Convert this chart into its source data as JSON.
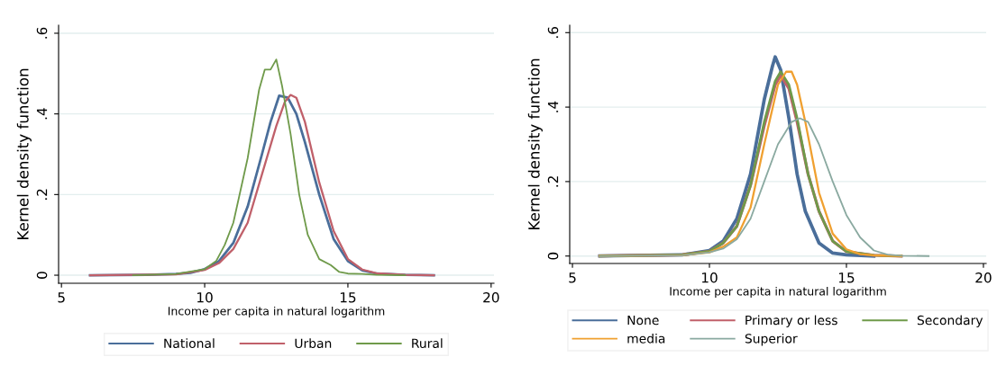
{
  "chart_data": [
    {
      "type": "line",
      "xlabel": "Income per capita in natural logarithm",
      "ylabel": "Kernel density function",
      "xlim": [
        4.9,
        20.1
      ],
      "ylim": [
        -0.02,
        0.62
      ],
      "xticks": [
        5,
        10,
        15,
        20
      ],
      "yticks": [
        {
          "value": 0,
          "label": "0"
        },
        {
          "value": 0.2,
          "label": ".2"
        },
        {
          "value": 0.4,
          "label": ".4"
        },
        {
          "value": 0.6,
          "label": ".6"
        }
      ],
      "grid": "y",
      "legend": "bottom",
      "line_style": "solid",
      "marker": "none",
      "series": [
        {
          "name": "National",
          "color": "#4a6e9a",
          "x": [
            6,
            8,
            9,
            9.5,
            10,
            10.5,
            11,
            11.5,
            12,
            12.3,
            12.6,
            12.9,
            13.2,
            13.5,
            14,
            14.5,
            15,
            15.5,
            16,
            17,
            18
          ],
          "values": [
            0,
            0.001,
            0.003,
            0.006,
            0.015,
            0.035,
            0.08,
            0.17,
            0.3,
            0.38,
            0.445,
            0.44,
            0.4,
            0.33,
            0.2,
            0.09,
            0.035,
            0.012,
            0.004,
            0.001,
            0
          ]
        },
        {
          "name": "Urban",
          "color": "#c0606a",
          "x": [
            6,
            9,
            10,
            10.5,
            11,
            11.5,
            12,
            12.5,
            12.8,
            13,
            13.2,
            13.5,
            14,
            14.5,
            15,
            15.5,
            16,
            17,
            18
          ],
          "values": [
            0,
            0.002,
            0.013,
            0.03,
            0.065,
            0.13,
            0.25,
            0.37,
            0.43,
            0.447,
            0.44,
            0.38,
            0.23,
            0.11,
            0.04,
            0.014,
            0.005,
            0.001,
            0
          ]
        },
        {
          "name": "Rural",
          "color": "#6f9a4a",
          "x": [
            7.5,
            9,
            10,
            10.4,
            10.7,
            11,
            11.5,
            11.9,
            12.1,
            12.3,
            12.5,
            12.7,
            13,
            13.3,
            13.6,
            14,
            14.4,
            14.7,
            15,
            15.5,
            16,
            17
          ],
          "values": [
            0,
            0.003,
            0.015,
            0.035,
            0.075,
            0.13,
            0.29,
            0.46,
            0.51,
            0.51,
            0.535,
            0.47,
            0.35,
            0.2,
            0.1,
            0.04,
            0.025,
            0.008,
            0.004,
            0.003,
            0.001,
            0
          ]
        }
      ]
    },
    {
      "type": "line",
      "xlabel": "Income per capita in natural logarithm",
      "ylabel": "Kernel density function",
      "xlim": [
        4.9,
        20.1
      ],
      "ylim": [
        -0.02,
        0.62
      ],
      "xticks": [
        5,
        10,
        15,
        20
      ],
      "yticks": [
        {
          "value": 0,
          "label": "0"
        },
        {
          "value": 0.2,
          "label": ".2"
        },
        {
          "value": 0.4,
          "label": ".4"
        },
        {
          "value": 0.6,
          "label": ".6"
        }
      ],
      "grid": "y",
      "legend": "bottom",
      "line_style": "solid",
      "marker": "none",
      "series": [
        {
          "name": "None",
          "color": "#4a6e9a",
          "x": [
            6,
            9,
            10,
            10.5,
            11,
            11.5,
            12,
            12.3,
            12.4,
            12.6,
            12.9,
            13.2,
            13.5,
            14,
            14.5,
            15,
            16
          ],
          "values": [
            0,
            0.003,
            0.015,
            0.04,
            0.1,
            0.22,
            0.42,
            0.51,
            0.535,
            0.5,
            0.37,
            0.22,
            0.12,
            0.035,
            0.008,
            0.003,
            0
          ]
        },
        {
          "name": "Primary or less",
          "color": "#c0606a",
          "x": [
            6,
            9,
            10,
            10.5,
            11,
            11.5,
            12,
            12.4,
            12.6,
            12.9,
            13.2,
            13.6,
            14,
            14.5,
            15,
            16,
            17
          ],
          "values": [
            0,
            0.003,
            0.013,
            0.035,
            0.08,
            0.19,
            0.35,
            0.46,
            0.485,
            0.45,
            0.36,
            0.22,
            0.12,
            0.04,
            0.012,
            0.002,
            0
          ]
        },
        {
          "name": "Secondary",
          "color": "#6f9a4a",
          "x": [
            6,
            9,
            10,
            10.5,
            11,
            11.5,
            12,
            12.4,
            12.6,
            12.9,
            13.2,
            13.6,
            14,
            14.5,
            15,
            16,
            17
          ],
          "values": [
            0,
            0.003,
            0.013,
            0.035,
            0.08,
            0.19,
            0.36,
            0.47,
            0.495,
            0.46,
            0.37,
            0.22,
            0.12,
            0.04,
            0.012,
            0.002,
            0
          ]
        },
        {
          "name": "media",
          "color": "#f0a030",
          "x": [
            6,
            9,
            10,
            10.5,
            11,
            11.5,
            12,
            12.5,
            12.8,
            13,
            13.2,
            13.5,
            14,
            14.5,
            15,
            15.5,
            16,
            17
          ],
          "values": [
            0,
            0.002,
            0.01,
            0.025,
            0.05,
            0.13,
            0.3,
            0.46,
            0.495,
            0.495,
            0.46,
            0.36,
            0.17,
            0.06,
            0.018,
            0.005,
            0.002,
            0
          ]
        },
        {
          "name": "Superior",
          "color": "#8aa9a0",
          "x": [
            6,
            9,
            10,
            10.5,
            11,
            11.5,
            12,
            12.5,
            13,
            13.3,
            13.6,
            14,
            14.5,
            15,
            15.5,
            16,
            16.5,
            17,
            18
          ],
          "values": [
            0,
            0.002,
            0.01,
            0.02,
            0.045,
            0.1,
            0.2,
            0.3,
            0.36,
            0.37,
            0.36,
            0.3,
            0.2,
            0.11,
            0.05,
            0.015,
            0.004,
            0.001,
            0
          ]
        }
      ]
    }
  ]
}
